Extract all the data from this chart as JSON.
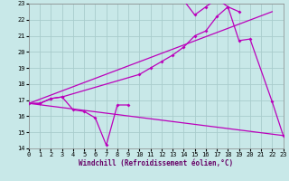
{
  "background_color": "#c8e8e8",
  "grid_color": "#a8cccc",
  "line_color": "#bb00bb",
  "xlim": [
    0,
    23
  ],
  "ylim": [
    14,
    23
  ],
  "yticks": [
    14,
    15,
    16,
    17,
    18,
    19,
    20,
    21,
    22,
    23
  ],
  "xticks": [
    0,
    1,
    2,
    3,
    4,
    5,
    6,
    7,
    8,
    9,
    10,
    11,
    12,
    13,
    14,
    15,
    16,
    17,
    18,
    19,
    20,
    21,
    22,
    23
  ],
  "xlabel": "Windchill (Refroidissement éolien,°C)",
  "straight_line_upper": {
    "x": [
      0,
      22
    ],
    "y": [
      16.8,
      22.5
    ]
  },
  "straight_line_lower": {
    "x": [
      0,
      23
    ],
    "y": [
      16.8,
      14.8
    ]
  },
  "curve_jagged_low": {
    "x": [
      0,
      1,
      2,
      3,
      4,
      5,
      6,
      7,
      8,
      9
    ],
    "y": [
      16.8,
      16.8,
      17.1,
      17.2,
      16.4,
      16.3,
      15.9,
      14.2,
      16.7,
      16.7
    ]
  },
  "curve_mid": {
    "x": [
      0,
      1,
      2,
      3,
      10,
      11,
      12,
      13,
      14,
      15,
      16,
      17,
      18,
      19,
      20,
      22,
      23
    ],
    "y": [
      16.8,
      16.8,
      17.1,
      17.2,
      18.6,
      19.0,
      19.4,
      19.8,
      20.3,
      21.0,
      21.3,
      22.2,
      22.8,
      20.7,
      20.8,
      16.9,
      14.8
    ]
  },
  "curve_top_peak": {
    "x": [
      14,
      15,
      16,
      17,
      18,
      19
    ],
    "y": [
      23.2,
      22.3,
      22.8,
      23.3,
      22.8,
      22.5
    ]
  }
}
